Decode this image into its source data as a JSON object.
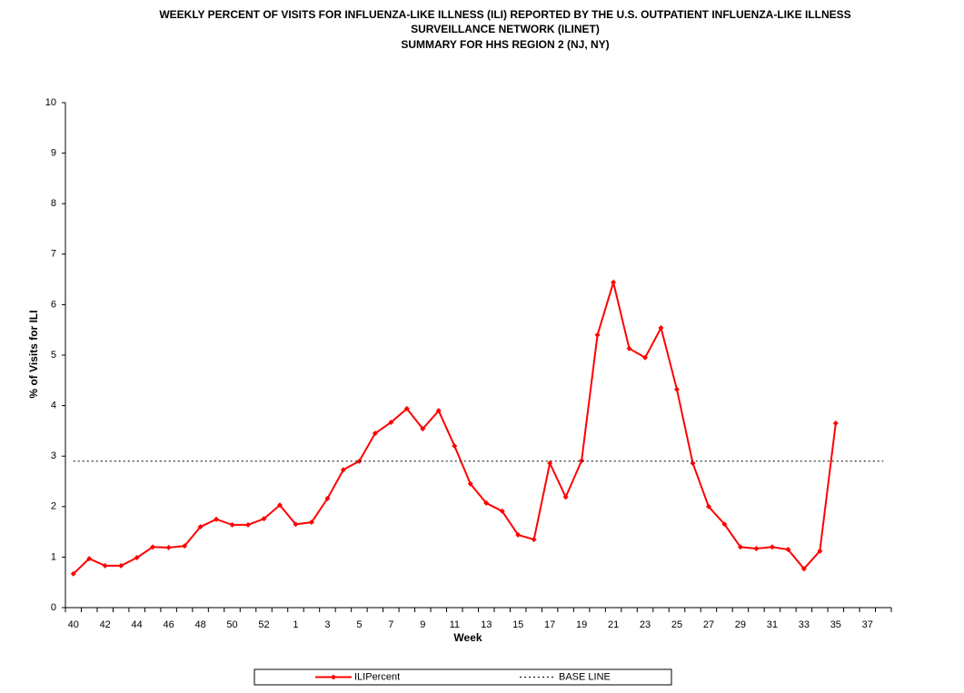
{
  "chart_data": {
    "type": "line",
    "title": [
      "WEEKLY PERCENT OF VISITS FOR INFLUENZA-LIKE ILLNESS (ILI) REPORTED BY THE U.S. OUTPATIENT INFLUENZA-LIKE ILLNESS",
      "SURVEILLANCE NETWORK (ILINET)",
      "SUMMARY FOR HHS REGION 2 (NJ, NY)"
    ],
    "xlabel": "Week",
    "ylabel": "% of Visits for ILI",
    "categories": [
      "40",
      null,
      "42",
      null,
      "44",
      null,
      "46",
      null,
      "48",
      null,
      "50",
      null,
      "52",
      null,
      "1",
      null,
      "3",
      null,
      "5",
      null,
      "7",
      null,
      "9",
      null,
      "11",
      null,
      "13",
      null,
      "15",
      null,
      "17",
      null,
      "19",
      null,
      "21",
      null,
      "23",
      null,
      "25",
      null,
      "27",
      null,
      "29",
      null,
      "31",
      null,
      "33",
      null,
      "35",
      null,
      "37",
      null
    ],
    "series": [
      {
        "name": "ILIPercent",
        "color": "#ff0000",
        "values": [
          0.67,
          0.97,
          0.83,
          0.83,
          0.99,
          1.2,
          1.19,
          1.22,
          1.6,
          1.75,
          1.64,
          1.64,
          1.76,
          2.03,
          1.65,
          1.69,
          2.16,
          2.73,
          2.9,
          3.45,
          3.67,
          3.94,
          3.54,
          3.9,
          3.2,
          2.45,
          2.07,
          1.91,
          1.44,
          1.35,
          2.86,
          2.19,
          2.91,
          5.4,
          6.44,
          5.13,
          4.95,
          5.54,
          4.32,
          2.86,
          2.0,
          1.65,
          1.2,
          1.17,
          1.2,
          1.15,
          0.77,
          1.12,
          3.65,
          null,
          null,
          null
        ]
      },
      {
        "name": "BASE LINE",
        "color": "#000000",
        "dash": "dotted",
        "values": [
          2.9,
          2.9,
          2.9,
          2.9,
          2.9,
          2.9,
          2.9,
          2.9,
          2.9,
          2.9,
          2.9,
          2.9,
          2.9,
          2.9,
          2.9,
          2.9,
          2.9,
          2.9,
          2.9,
          2.9,
          2.9,
          2.9,
          2.9,
          2.9,
          2.9,
          2.9,
          2.9,
          2.9,
          2.9,
          2.9,
          2.9,
          2.9,
          2.9,
          2.9,
          2.9,
          2.9,
          2.9,
          2.9,
          2.9,
          2.9,
          2.9,
          2.9,
          2.9,
          2.9,
          2.9,
          2.9,
          2.9,
          2.9,
          2.9,
          2.9,
          2.9,
          2.9
        ]
      }
    ],
    "ylim": [
      0,
      10
    ],
    "yticks": [
      0,
      1,
      2,
      3,
      4,
      5,
      6,
      7,
      8,
      9,
      10
    ],
    "legend": "bottom"
  }
}
